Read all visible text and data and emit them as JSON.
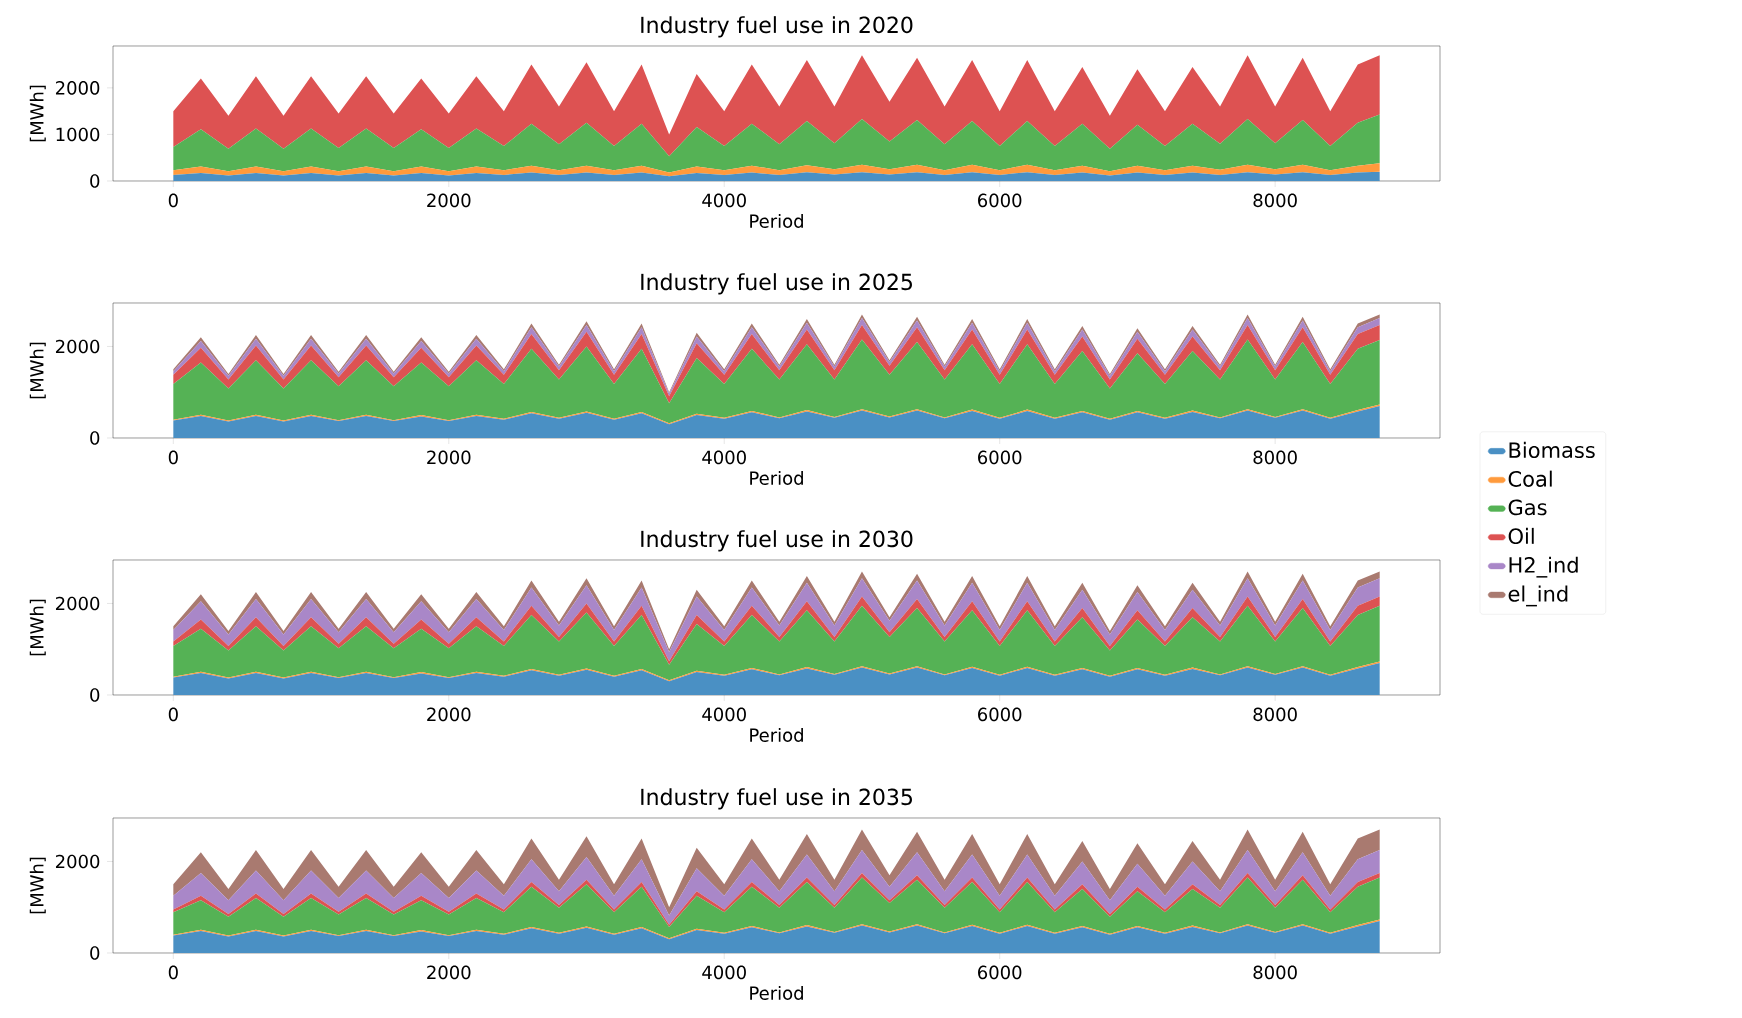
{
  "chart_data": [
    {
      "type": "area",
      "stacked": true,
      "title": "Industry fuel use in 2020",
      "xlabel": "Period",
      "ylabel": "[MWh]",
      "x": [
        0,
        200,
        400,
        600,
        800,
        1000,
        1200,
        1400,
        1600,
        1800,
        2000,
        2200,
        2400,
        2600,
        2800,
        3000,
        3200,
        3400,
        3600,
        3800,
        4000,
        4200,
        4400,
        4600,
        4800,
        5000,
        5200,
        5400,
        5600,
        5800,
        6000,
        6200,
        6400,
        6600,
        6800,
        7000,
        7200,
        7400,
        7600,
        7800,
        8000,
        8200,
        8400,
        8600,
        8759
      ],
      "xlim": [
        -438,
        9197
      ],
      "xticks": [
        0,
        2000,
        4000,
        6000,
        8000
      ],
      "ylim": [
        0,
        2900
      ],
      "yticks": [
        0,
        1000,
        2000
      ],
      "series": [
        {
          "color": "#4a90c4",
          "values": [
            130,
            170,
            120,
            170,
            120,
            170,
            120,
            170,
            120,
            170,
            120,
            170,
            130,
            180,
            130,
            180,
            130,
            180,
            100,
            170,
            130,
            180,
            130,
            190,
            140,
            190,
            140,
            190,
            130,
            190,
            130,
            190,
            130,
            180,
            120,
            180,
            130,
            180,
            130,
            190,
            140,
            190,
            130,
            180,
            200
          ]
        },
        {
          "color": "#ff9a3c",
          "values": [
            100,
            140,
            90,
            140,
            90,
            140,
            90,
            140,
            90,
            140,
            90,
            140,
            100,
            150,
            100,
            150,
            100,
            150,
            80,
            140,
            100,
            150,
            100,
            150,
            110,
            160,
            110,
            160,
            100,
            160,
            100,
            160,
            100,
            150,
            90,
            150,
            100,
            150,
            110,
            160,
            110,
            160,
            100,
            150,
            180
          ]
        },
        {
          "color": "#55b255",
          "values": [
            500,
            800,
            480,
            820,
            480,
            820,
            500,
            820,
            500,
            800,
            500,
            820,
            520,
            900,
            560,
            920,
            520,
            900,
            350,
            850,
            520,
            900,
            560,
            950,
            560,
            980,
            600,
            960,
            560,
            940,
            520,
            940,
            520,
            900,
            480,
            880,
            520,
            900,
            560,
            980,
            560,
            960,
            520,
            920,
            1050
          ]
        },
        {
          "color": "#dd5252",
          "values": [
            770,
            1090,
            710,
            1120,
            710,
            1120,
            740,
            1120,
            740,
            1090,
            740,
            1120,
            750,
            1270,
            810,
            1300,
            750,
            1270,
            470,
            1140,
            750,
            1270,
            810,
            1310,
            790,
            1370,
            850,
            1340,
            810,
            1310,
            750,
            1310,
            750,
            1220,
            710,
            1190,
            750,
            1220,
            800,
            1370,
            790,
            1340,
            750,
            1250,
            1270
          ]
        }
      ]
    },
    {
      "type": "area",
      "stacked": true,
      "title": "Industry fuel use in 2025",
      "xlabel": "Period",
      "ylabel": "[MWh]",
      "legend": "right",
      "x": [
        0,
        200,
        400,
        600,
        800,
        1000,
        1200,
        1400,
        1600,
        1800,
        2000,
        2200,
        2400,
        2600,
        2800,
        3000,
        3200,
        3400,
        3600,
        3800,
        4000,
        4200,
        4400,
        4600,
        4800,
        5000,
        5200,
        5400,
        5600,
        5800,
        6000,
        6200,
        6400,
        6600,
        6800,
        7000,
        7200,
        7400,
        7600,
        7800,
        8000,
        8200,
        8400,
        8600,
        8759
      ],
      "xlim": [
        -438,
        9197
      ],
      "xticks": [
        0,
        2000,
        4000,
        6000,
        8000
      ],
      "ylim": [
        0,
        2950
      ],
      "yticks": [
        0,
        2000
      ],
      "series": [
        {
          "name": "Biomass",
          "color": "#4a90c4",
          "values": [
            380,
            480,
            360,
            480,
            360,
            480,
            370,
            480,
            370,
            470,
            370,
            480,
            400,
            540,
            420,
            550,
            400,
            540,
            300,
            500,
            420,
            560,
            430,
            580,
            440,
            600,
            450,
            600,
            430,
            590,
            420,
            590,
            420,
            560,
            400,
            560,
            420,
            570,
            430,
            600,
            440,
            600,
            420,
            580,
            700
          ]
        },
        {
          "name": "Coal",
          "color": "#ff9a3c",
          "values": [
            20,
            30,
            20,
            30,
            20,
            30,
            20,
            30,
            20,
            30,
            20,
            30,
            20,
            30,
            20,
            30,
            20,
            30,
            20,
            30,
            20,
            30,
            20,
            30,
            20,
            30,
            20,
            30,
            20,
            30,
            20,
            30,
            20,
            30,
            20,
            30,
            20,
            30,
            20,
            30,
            20,
            30,
            20,
            30,
            30
          ]
        },
        {
          "name": "Gas",
          "color": "#55b255",
          "values": [
            780,
            1140,
            700,
            1190,
            700,
            1190,
            740,
            1190,
            740,
            1150,
            740,
            1190,
            760,
            1380,
            840,
            1420,
            760,
            1380,
            440,
            1220,
            740,
            1360,
            830,
            1440,
            820,
            1520,
            910,
            1470,
            830,
            1430,
            740,
            1430,
            740,
            1310,
            660,
            1260,
            740,
            1300,
            830,
            1520,
            820,
            1470,
            740,
            1340,
            1410
          ]
        },
        {
          "name": "Oil",
          "color": "#dd5252",
          "values": [
            200,
            320,
            200,
            320,
            200,
            320,
            200,
            320,
            200,
            320,
            200,
            320,
            200,
            320,
            200,
            320,
            200,
            320,
            150,
            320,
            200,
            320,
            200,
            320,
            200,
            320,
            200,
            320,
            200,
            320,
            200,
            320,
            200,
            320,
            200,
            320,
            200,
            320,
            200,
            320,
            200,
            320,
            200,
            320,
            330
          ]
        },
        {
          "name": "H2_ind",
          "color": "#a987c8",
          "values": [
            80,
            150,
            80,
            150,
            80,
            150,
            80,
            150,
            80,
            150,
            80,
            150,
            80,
            150,
            80,
            150,
            80,
            150,
            60,
            150,
            80,
            150,
            80,
            150,
            80,
            150,
            80,
            150,
            80,
            150,
            80,
            150,
            80,
            150,
            80,
            150,
            80,
            150,
            80,
            150,
            80,
            150,
            80,
            150,
            150
          ]
        },
        {
          "name": "el_ind",
          "color": "#a97a70",
          "values": [
            40,
            80,
            40,
            80,
            40,
            80,
            40,
            80,
            40,
            80,
            40,
            80,
            40,
            80,
            40,
            80,
            40,
            80,
            30,
            80,
            40,
            80,
            40,
            80,
            40,
            80,
            40,
            80,
            40,
            80,
            40,
            80,
            40,
            80,
            40,
            80,
            40,
            80,
            40,
            80,
            40,
            80,
            40,
            80,
            80
          ]
        }
      ]
    },
    {
      "type": "area",
      "stacked": true,
      "title": "Industry fuel use in 2030",
      "xlabel": "Period",
      "ylabel": "[MWh]",
      "x": [
        0,
        200,
        400,
        600,
        800,
        1000,
        1200,
        1400,
        1600,
        1800,
        2000,
        2200,
        2400,
        2600,
        2800,
        3000,
        3200,
        3400,
        3600,
        3800,
        4000,
        4200,
        4400,
        4600,
        4800,
        5000,
        5200,
        5400,
        5600,
        5800,
        6000,
        6200,
        6400,
        6600,
        6800,
        7000,
        7200,
        7400,
        7600,
        7800,
        8000,
        8200,
        8400,
        8600,
        8759
      ],
      "xlim": [
        -438,
        9197
      ],
      "xticks": [
        0,
        2000,
        4000,
        6000,
        8000
      ],
      "ylim": [
        0,
        2950
      ],
      "yticks": [
        0,
        2000
      ],
      "series": [
        {
          "color": "#4a90c4",
          "values": [
            380,
            480,
            360,
            480,
            360,
            480,
            370,
            480,
            370,
            470,
            370,
            480,
            400,
            540,
            420,
            550,
            400,
            540,
            300,
            500,
            420,
            560,
            430,
            580,
            440,
            600,
            450,
            600,
            430,
            590,
            420,
            590,
            420,
            560,
            400,
            560,
            420,
            570,
            430,
            600,
            440,
            600,
            420,
            580,
            700
          ]
        },
        {
          "color": "#ff9a3c",
          "values": [
            20,
            30,
            20,
            30,
            20,
            30,
            20,
            30,
            20,
            30,
            20,
            30,
            20,
            30,
            20,
            30,
            20,
            30,
            20,
            30,
            20,
            30,
            20,
            30,
            20,
            30,
            20,
            30,
            20,
            30,
            20,
            30,
            20,
            30,
            20,
            30,
            20,
            30,
            20,
            30,
            20,
            30,
            20,
            30,
            30
          ]
        },
        {
          "color": "#55b255",
          "values": [
            670,
            940,
            590,
            990,
            590,
            990,
            630,
            990,
            630,
            950,
            630,
            990,
            650,
            1180,
            730,
            1220,
            650,
            1180,
            340,
            1020,
            630,
            1160,
            720,
            1240,
            710,
            1320,
            800,
            1270,
            720,
            1230,
            630,
            1230,
            630,
            1110,
            550,
            1060,
            630,
            1100,
            720,
            1320,
            710,
            1270,
            630,
            1140,
            1220
          ]
        },
        {
          "color": "#dd5252",
          "values": [
            100,
            200,
            100,
            200,
            100,
            200,
            100,
            200,
            100,
            200,
            100,
            200,
            100,
            200,
            100,
            200,
            100,
            200,
            80,
            200,
            100,
            200,
            100,
            200,
            100,
            200,
            100,
            200,
            100,
            200,
            100,
            200,
            100,
            200,
            100,
            200,
            100,
            200,
            100,
            200,
            100,
            200,
            100,
            200,
            200
          ]
        },
        {
          "color": "#a987c8",
          "values": [
            250,
            400,
            250,
            400,
            250,
            400,
            250,
            400,
            250,
            400,
            250,
            400,
            250,
            400,
            250,
            400,
            250,
            400,
            200,
            400,
            250,
            400,
            250,
            400,
            250,
            400,
            250,
            400,
            250,
            400,
            250,
            400,
            250,
            400,
            250,
            400,
            250,
            400,
            250,
            400,
            250,
            400,
            250,
            400,
            400
          ]
        },
        {
          "color": "#a97a70",
          "values": [
            80,
            150,
            80,
            150,
            80,
            150,
            80,
            150,
            80,
            150,
            80,
            150,
            80,
            150,
            80,
            150,
            80,
            150,
            60,
            150,
            80,
            150,
            80,
            150,
            80,
            150,
            80,
            150,
            80,
            150,
            80,
            150,
            80,
            150,
            80,
            150,
            80,
            150,
            80,
            150,
            80,
            150,
            80,
            150,
            150
          ]
        }
      ]
    },
    {
      "type": "area",
      "stacked": true,
      "title": "Industry fuel use in 2035",
      "xlabel": "Period",
      "ylabel": "[MWh]",
      "x": [
        0,
        200,
        400,
        600,
        800,
        1000,
        1200,
        1400,
        1600,
        1800,
        2000,
        2200,
        2400,
        2600,
        2800,
        3000,
        3200,
        3400,
        3600,
        3800,
        4000,
        4200,
        4400,
        4600,
        4800,
        5000,
        5200,
        5400,
        5600,
        5800,
        6000,
        6200,
        6400,
        6600,
        6800,
        7000,
        7200,
        7400,
        7600,
        7800,
        8000,
        8200,
        8400,
        8600,
        8759
      ],
      "xlim": [
        -438,
        9197
      ],
      "xticks": [
        0,
        2000,
        4000,
        6000,
        8000
      ],
      "ylim": [
        0,
        2950
      ],
      "yticks": [
        0,
        2000
      ],
      "series": [
        {
          "color": "#4a90c4",
          "values": [
            380,
            480,
            360,
            480,
            360,
            480,
            370,
            480,
            370,
            470,
            370,
            480,
            400,
            540,
            420,
            550,
            400,
            540,
            300,
            500,
            420,
            560,
            430,
            580,
            440,
            600,
            450,
            600,
            430,
            590,
            420,
            590,
            420,
            560,
            400,
            560,
            420,
            570,
            430,
            600,
            440,
            600,
            420,
            580,
            700
          ]
        },
        {
          "color": "#ff9a3c",
          "values": [
            20,
            30,
            20,
            30,
            20,
            30,
            20,
            30,
            20,
            30,
            20,
            30,
            20,
            30,
            20,
            30,
            20,
            30,
            20,
            30,
            20,
            30,
            20,
            30,
            20,
            30,
            20,
            30,
            20,
            30,
            20,
            30,
            20,
            30,
            20,
            30,
            20,
            30,
            20,
            30,
            20,
            30,
            20,
            30,
            30
          ]
        },
        {
          "color": "#55b255",
          "values": [
            490,
            640,
            410,
            690,
            410,
            690,
            450,
            690,
            450,
            650,
            450,
            690,
            470,
            880,
            550,
            920,
            470,
            880,
            250,
            720,
            450,
            860,
            540,
            940,
            530,
            1020,
            620,
            970,
            540,
            930,
            450,
            930,
            450,
            810,
            370,
            760,
            450,
            800,
            540,
            1020,
            530,
            970,
            450,
            840,
            920
          ]
        },
        {
          "color": "#dd5252",
          "values": [
            60,
            100,
            60,
            100,
            60,
            100,
            60,
            100,
            60,
            100,
            60,
            100,
            60,
            100,
            60,
            100,
            60,
            100,
            50,
            100,
            60,
            100,
            60,
            100,
            60,
            100,
            60,
            100,
            60,
            100,
            60,
            100,
            60,
            100,
            60,
            100,
            60,
            100,
            60,
            100,
            60,
            100,
            60,
            100,
            100
          ]
        },
        {
          "color": "#a987c8",
          "values": [
            300,
            500,
            300,
            500,
            300,
            500,
            300,
            500,
            300,
            500,
            300,
            500,
            300,
            500,
            300,
            500,
            300,
            500,
            200,
            500,
            300,
            500,
            300,
            500,
            300,
            500,
            300,
            500,
            300,
            500,
            300,
            500,
            300,
            500,
            300,
            500,
            300,
            500,
            300,
            500,
            300,
            500,
            300,
            500,
            500
          ]
        },
        {
          "color": "#a97a70",
          "values": [
            250,
            450,
            250,
            450,
            250,
            450,
            250,
            450,
            250,
            450,
            250,
            450,
            250,
            450,
            250,
            450,
            250,
            450,
            180,
            450,
            250,
            450,
            250,
            450,
            250,
            450,
            250,
            450,
            250,
            450,
            250,
            450,
            250,
            450,
            250,
            450,
            250,
            450,
            250,
            450,
            250,
            450,
            250,
            450,
            450
          ]
        }
      ]
    }
  ]
}
